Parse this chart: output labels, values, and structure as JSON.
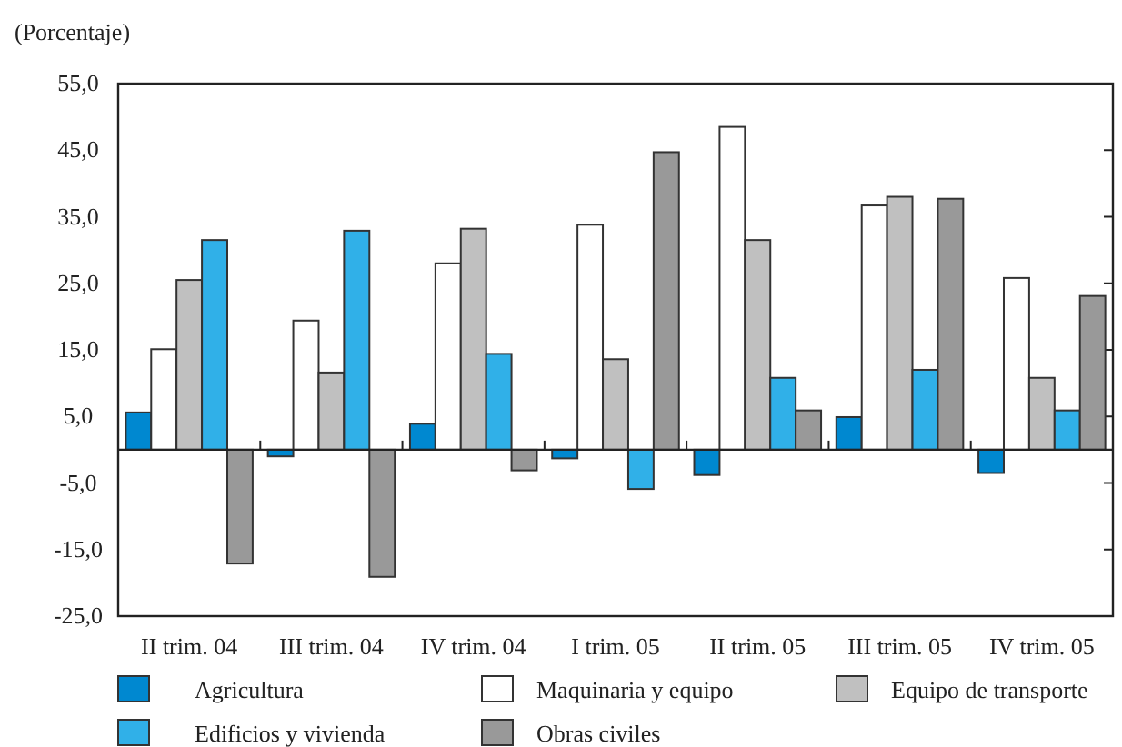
{
  "chart_data": {
    "type": "bar",
    "ylabel": "(Porcentaje)",
    "categories": [
      "II trim. 04",
      "III trim. 04",
      "IV trim. 04",
      "I trim. 05",
      "II trim. 05",
      "III trim. 05",
      "IV trim. 05"
    ],
    "series": [
      {
        "name": "Agricultura",
        "color": "#0088d0",
        "values": [
          5.6,
          -1.0,
          3.9,
          -1.3,
          -3.8,
          4.9,
          -3.5
        ]
      },
      {
        "name": "Maquinaria y equipo",
        "color": "#ffffff",
        "values": [
          15.1,
          19.4,
          28.0,
          33.8,
          48.5,
          36.7,
          25.8
        ]
      },
      {
        "name": "Equipo de transporte",
        "color": "#c0c0c0",
        "values": [
          25.5,
          11.6,
          33.2,
          13.6,
          31.5,
          38.0,
          10.8
        ]
      },
      {
        "name": "Edificios y vivienda",
        "color": "#30b0e8",
        "values": [
          31.5,
          32.9,
          14.4,
          -5.9,
          10.8,
          12.0,
          5.9
        ]
      },
      {
        "name": "Obras civiles",
        "color": "#999999",
        "values": [
          -17.1,
          -19.1,
          -3.1,
          44.7,
          5.9,
          37.7,
          23.1
        ]
      }
    ],
    "ylim": [
      -25,
      55
    ],
    "yticks": [
      {
        "value": -25,
        "label": "-25,0"
      },
      {
        "value": -15,
        "label": "-15,0"
      },
      {
        "value": -5,
        "label": "-5,0"
      },
      {
        "value": 5,
        "label": "5,0"
      },
      {
        "value": 15,
        "label": "15,0"
      },
      {
        "value": 25,
        "label": "25,0"
      },
      {
        "value": 35,
        "label": "35,0"
      },
      {
        "value": 45,
        "label": "45,0"
      },
      {
        "value": 55,
        "label": "55,0"
      }
    ],
    "legend": "bottom",
    "grid": false
  }
}
